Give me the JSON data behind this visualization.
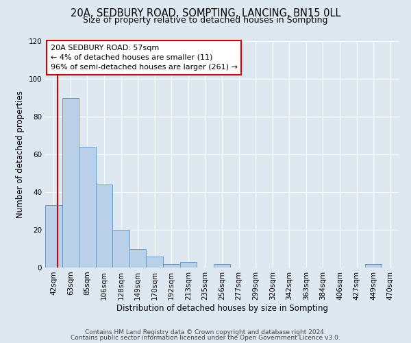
{
  "title": "20A, SEDBURY ROAD, SOMPTING, LANCING, BN15 0LL",
  "subtitle": "Size of property relative to detached houses in Sompting",
  "xlabel": "Distribution of detached houses by size in Sompting",
  "ylabel": "Number of detached properties",
  "bin_labels": [
    "42sqm",
    "63sqm",
    "85sqm",
    "106sqm",
    "128sqm",
    "149sqm",
    "170sqm",
    "192sqm",
    "213sqm",
    "235sqm",
    "256sqm",
    "277sqm",
    "299sqm",
    "320sqm",
    "342sqm",
    "363sqm",
    "384sqm",
    "406sqm",
    "427sqm",
    "449sqm",
    "470sqm"
  ],
  "bar_heights": [
    33,
    90,
    64,
    44,
    20,
    10,
    6,
    2,
    3,
    0,
    2,
    0,
    0,
    0,
    0,
    0,
    0,
    0,
    0,
    2,
    0
  ],
  "bar_color": "#b8d0e8",
  "bar_edgecolor": "#6699cc",
  "ylim": [
    0,
    120
  ],
  "yticks": [
    0,
    20,
    40,
    60,
    80,
    100,
    120
  ],
  "annotation_title": "20A SEDBURY ROAD: 57sqm",
  "annotation_line1": "← 4% of detached houses are smaller (11)",
  "annotation_line2": "96% of semi-detached houses are larger (261) →",
  "annotation_box_facecolor": "#ffffff",
  "annotation_box_edgecolor": "#cc0000",
  "vline_color": "#cc0000",
  "footer1": "Contains HM Land Registry data © Crown copyright and database right 2024.",
  "footer2": "Contains public sector information licensed under the Open Government Licence v3.0.",
  "background_color": "#dde8f0",
  "plot_background": "#dde8f0",
  "grid_color": "#ffffff",
  "title_fontsize": 10.5,
  "subtitle_fontsize": 9,
  "axis_label_fontsize": 8.5,
  "tick_fontsize": 7.5,
  "annotation_fontsize": 8,
  "footer_fontsize": 6.5
}
